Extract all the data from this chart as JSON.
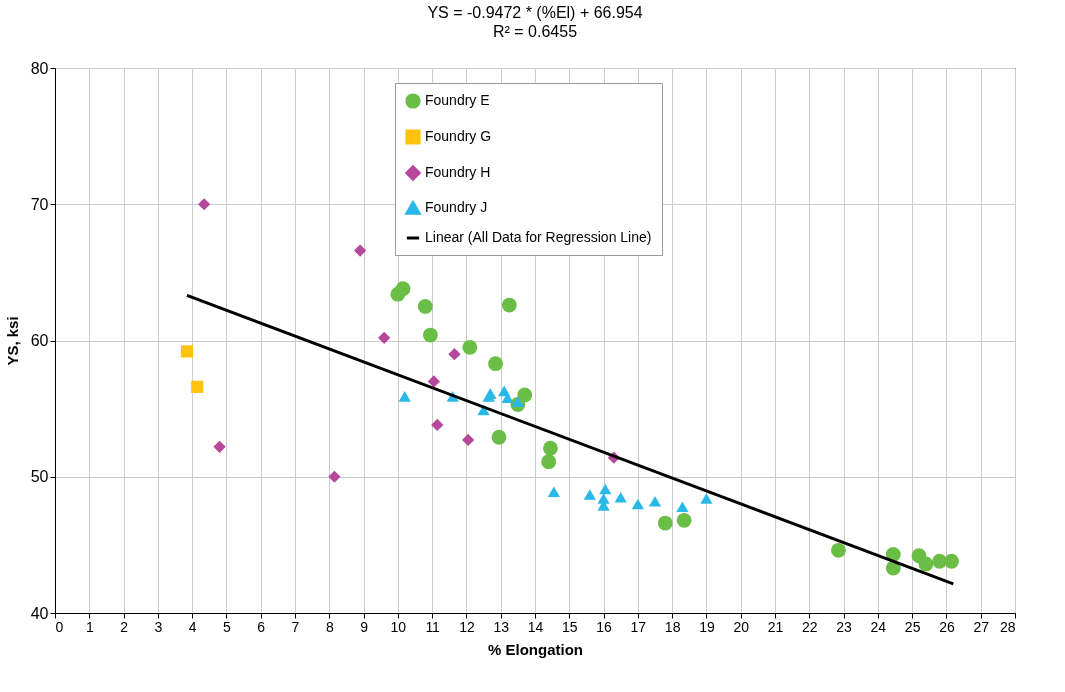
{
  "chart_data": {
    "type": "scatter",
    "title": "YS = -0.9472  * (%El) + 66.954",
    "subtitle": "R² = 0.6455",
    "xlabel": "% Elongation",
    "ylabel": "YS, ksi",
    "xlim": [
      0,
      28
    ],
    "xticks": [
      0,
      1,
      2,
      3,
      4,
      5,
      6,
      7,
      8,
      9,
      10,
      11,
      12,
      13,
      14,
      15,
      16,
      17,
      18,
      19,
      20,
      21,
      22,
      23,
      24,
      25,
      26,
      27,
      28
    ],
    "ylim": [
      40,
      80
    ],
    "yticks": [
      40,
      50,
      60,
      70,
      80
    ],
    "grid": true,
    "legend": "top",
    "series": [
      {
        "name": "Foundry E",
        "color": "#6abd45",
        "marker": "circle",
        "x": [
          10.0,
          10.15,
          10.8,
          10.95,
          12.1,
          12.85,
          13.25,
          13.7,
          13.5,
          12.95,
          14.45,
          14.4,
          17.8,
          18.35,
          22.85,
          24.45,
          24.45,
          25.2,
          25.4,
          25.8,
          26.15
        ],
        "values": [
          63.4,
          63.8,
          62.5,
          60.4,
          59.5,
          58.3,
          62.6,
          56.0,
          55.3,
          52.9,
          52.1,
          51.1,
          46.6,
          46.8,
          44.6,
          44.3,
          43.3,
          44.2,
          43.6,
          43.8,
          43.8
        ]
      },
      {
        "name": "Foundry G",
        "color": "#ffc20e",
        "marker": "square",
        "x": [
          3.85,
          4.15
        ],
        "values": [
          59.2,
          56.6
        ]
      },
      {
        "name": "Foundry H",
        "color": "#b5489a",
        "marker": "diamond",
        "x": [
          4.35,
          4.8,
          8.15,
          8.9,
          9.6,
          11.05,
          11.15,
          11.65,
          12.05,
          16.3
        ],
        "values": [
          70.0,
          52.2,
          50.0,
          66.6,
          60.2,
          57.0,
          53.8,
          59.0,
          52.7,
          51.4
        ]
      },
      {
        "name": "Foundry J",
        "color": "#29b9e8",
        "marker": "triangle",
        "x": [
          10.2,
          11.6,
          12.5,
          12.65,
          12.7,
          13.1,
          13.2,
          13.5,
          14.55,
          15.6,
          16.05,
          16.0,
          16.0,
          16.5,
          17.0,
          17.5,
          18.3,
          19.0
        ],
        "values": [
          55.9,
          55.9,
          54.9,
          55.9,
          56.1,
          56.3,
          55.8,
          55.5,
          48.9,
          48.7,
          49.1,
          48.4,
          47.9,
          48.5,
          48.0,
          48.2,
          47.8,
          48.4
        ]
      },
      {
        "name": "Linear (All Data for Regression Line)",
        "type": "line",
        "color": "#000000",
        "line_style": "solid",
        "marker": "none",
        "x": [
          3.85,
          26.2
        ],
        "values": [
          63.31,
          42.14
        ]
      }
    ]
  }
}
